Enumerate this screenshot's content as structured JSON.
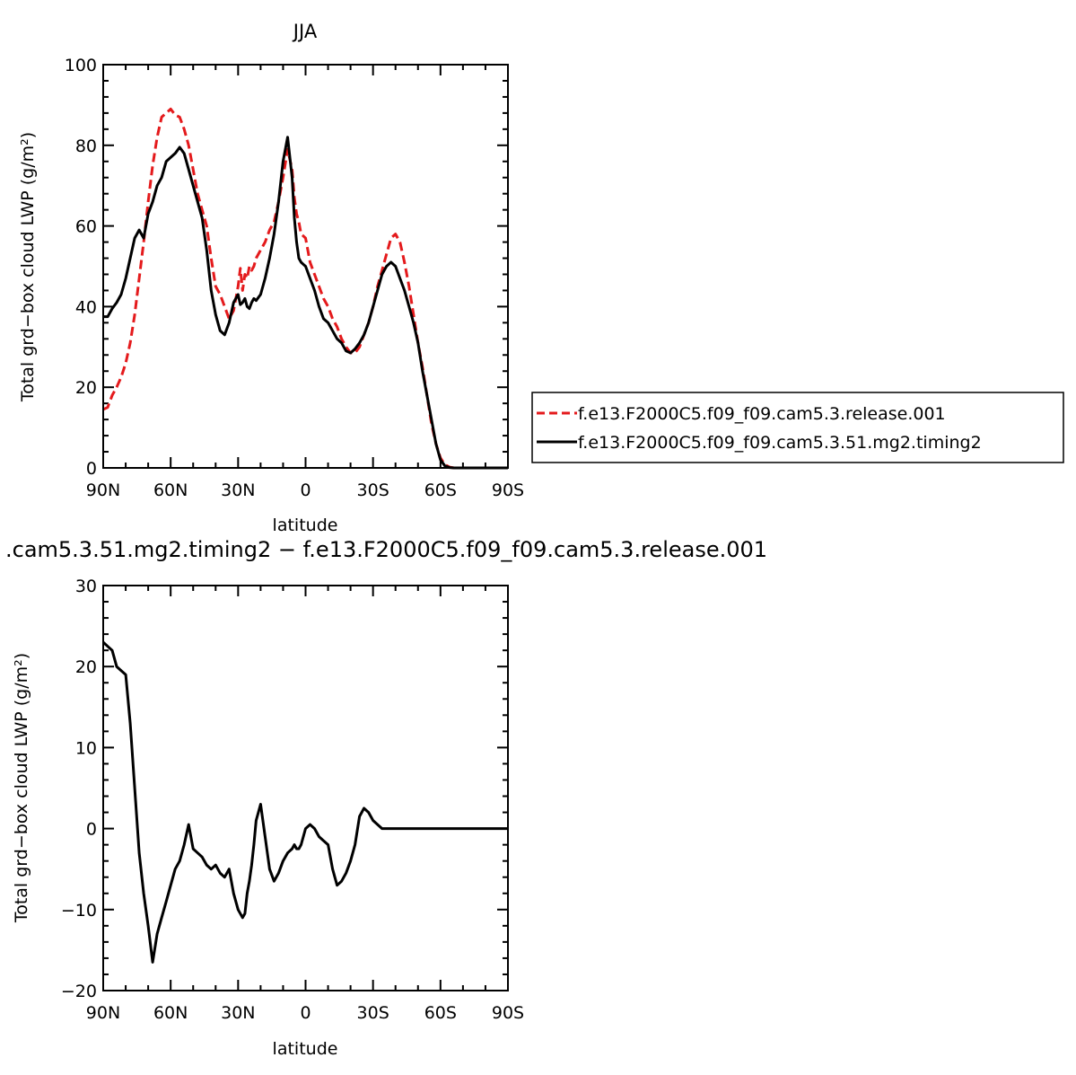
{
  "chart_data": [
    {
      "type": "line",
      "title": "JJA",
      "xlabel": "latitude",
      "ylabel": "Total grd−box cloud LWP (g/m²)",
      "xlim": [
        90,
        -90
      ],
      "ylim": [
        0,
        100
      ],
      "xticks": [
        90,
        60,
        30,
        0,
        -30,
        -60,
        -90
      ],
      "xtick_labels": [
        "90N",
        "60N",
        "30N",
        "0",
        "30S",
        "60S",
        "90S"
      ],
      "yticks": [
        0,
        20,
        40,
        60,
        80,
        100
      ],
      "ytick_labels": [
        "0",
        "20",
        "40",
        "60",
        "80",
        "100"
      ],
      "legend_position": "right",
      "series": [
        {
          "name": "f.e13.F2000C5.f09_f09.cam5.3.release.001",
          "color": "#e41a1c",
          "dash": "dashed",
          "x": [
            90,
            88,
            86,
            84,
            82,
            80,
            78,
            76,
            74,
            72,
            70,
            68,
            66,
            64,
            62,
            60,
            58,
            56,
            54,
            52,
            50,
            48,
            46,
            44,
            42,
            40,
            38,
            36,
            34,
            32,
            30,
            29,
            28,
            27,
            26,
            25,
            24,
            23,
            22,
            20,
            18,
            16,
            14,
            12,
            10,
            8,
            6,
            5,
            4,
            3,
            2,
            1,
            0,
            -2,
            -4,
            -6,
            -8,
            -10,
            -12,
            -14,
            -16,
            -18,
            -20,
            -22,
            -24,
            -26,
            -28,
            -30,
            -32,
            -34,
            -36,
            -38,
            -40,
            -42,
            -44,
            -46,
            -48,
            -50,
            -52,
            -54,
            -56,
            -58,
            -60,
            -62,
            -64,
            -66,
            -68,
            -70,
            -72,
            -74,
            -76,
            -78,
            -80,
            -82,
            -84,
            -86,
            -88,
            -90
          ],
          "y": [
            14.5,
            15,
            18,
            20,
            22.5,
            26,
            31,
            38,
            47,
            56,
            66,
            75,
            82,
            87,
            88,
            89,
            87.5,
            87,
            84,
            80,
            74,
            68,
            64,
            60,
            52,
            45,
            43,
            40,
            37,
            39,
            45,
            49.5,
            44,
            48,
            47,
            50,
            49,
            50,
            52,
            54,
            56,
            59,
            61,
            66,
            72,
            79,
            74,
            67,
            63,
            61,
            58,
            57.5,
            57,
            51,
            48,
            45,
            42,
            40,
            37,
            35,
            32,
            30,
            28.5,
            28.5,
            30,
            33,
            36,
            40,
            45,
            49,
            53,
            57,
            58,
            56,
            51,
            45,
            38,
            31,
            25,
            18,
            11,
            6,
            2.5,
            0.8,
            0.2,
            0,
            0,
            0,
            0,
            0,
            0,
            0,
            0,
            0,
            0,
            0,
            0,
            0
          ]
        },
        {
          "name": "f.e13.F2000C5.f09_f09.cam5.3.51.mg2.timing2",
          "color": "#000000",
          "dash": "solid",
          "x": [
            90,
            88,
            86,
            84,
            82,
            80,
            78,
            76,
            74,
            72,
            70,
            68,
            66,
            64,
            62,
            60,
            58,
            56,
            54,
            52,
            50,
            48,
            46,
            44,
            42,
            40,
            38,
            36,
            34,
            32,
            30,
            29,
            28,
            27,
            26,
            25,
            24,
            23,
            22,
            20,
            18,
            16,
            14,
            12,
            10,
            8,
            6,
            5,
            4,
            3,
            2,
            1,
            0,
            -2,
            -4,
            -6,
            -8,
            -10,
            -12,
            -14,
            -16,
            -18,
            -20,
            -22,
            -24,
            -26,
            -28,
            -30,
            -32,
            -34,
            -36,
            -38,
            -40,
            -42,
            -44,
            -46,
            -48,
            -50,
            -52,
            -54,
            -56,
            -58,
            -60,
            -62,
            -64,
            -66,
            -68,
            -70,
            -72,
            -74,
            -76,
            -78,
            -80,
            -82,
            -84,
            -86,
            -88,
            -90
          ],
          "y": [
            37.5,
            37.5,
            39.5,
            41,
            43,
            47,
            52,
            57,
            59,
            57,
            63,
            66,
            70,
            72,
            76,
            77,
            78,
            79.5,
            78,
            74,
            70,
            66,
            62,
            54,
            44,
            38,
            34,
            33,
            36,
            41,
            43,
            40.5,
            41,
            42,
            40,
            39.5,
            41,
            42,
            41.5,
            43,
            47,
            52,
            58,
            66,
            76,
            82,
            72,
            62,
            56,
            52,
            51,
            50.5,
            50,
            47,
            44,
            40,
            37,
            36,
            34,
            32,
            31,
            29,
            28.5,
            29.5,
            31,
            33,
            36,
            40,
            44,
            48,
            50,
            51,
            50,
            47,
            44,
            40,
            36,
            31,
            24,
            18,
            12,
            6,
            2,
            0.5,
            0.1,
            0,
            0,
            0,
            0,
            0,
            0,
            0,
            0,
            0,
            0,
            0,
            0,
            0
          ]
        }
      ]
    },
    {
      "type": "line",
      "title": ".cam5.3.51.mg2.timing2 − f.e13.F2000C5.f09_f09.cam5.3.release.001",
      "xlabel": "latitude",
      "ylabel": "Total grd−box cloud LWP (g/m²)",
      "xlim": [
        90,
        -90
      ],
      "ylim": [
        -20,
        30
      ],
      "xticks": [
        90,
        60,
        30,
        0,
        -30,
        -60,
        -90
      ],
      "xtick_labels": [
        "90N",
        "60N",
        "30N",
        "0",
        "30S",
        "60S",
        "90S"
      ],
      "yticks": [
        -20,
        -10,
        0,
        10,
        20,
        30
      ],
      "ytick_labels": [
        "−20",
        "−10",
        "0",
        "10",
        "20",
        "30"
      ],
      "series": [
        {
          "color": "#000000",
          "dash": "solid",
          "x": [
            90,
            88,
            86,
            84,
            82,
            80,
            78,
            76,
            74,
            72,
            70,
            68,
            66,
            64,
            62,
            60,
            58,
            56,
            54,
            52,
            50,
            48,
            46,
            44,
            42,
            40,
            38,
            36,
            34,
            32,
            30,
            29,
            28,
            27,
            26,
            25,
            24,
            23,
            22,
            20,
            18,
            16,
            14,
            12,
            10,
            8,
            6,
            5,
            4,
            3,
            2,
            1,
            0,
            -2,
            -4,
            -6,
            -8,
            -10,
            -12,
            -14,
            -16,
            -18,
            -20,
            -22,
            -24,
            -26,
            -28,
            -30,
            -32,
            -34,
            -36,
            -38,
            -40,
            -42,
            -44,
            -46,
            -48,
            -50,
            -52,
            -54,
            -56,
            -58,
            -60,
            -62,
            -64,
            -66,
            -68,
            -70,
            -72,
            -74,
            -76,
            -78,
            -80,
            -82,
            -84,
            -86,
            -88,
            -90
          ],
          "y": [
            23,
            22.5,
            22,
            20,
            19.5,
            19,
            13,
            5,
            -3,
            -8,
            -12,
            -16.5,
            -13,
            -11,
            -9,
            -7,
            -5,
            -4,
            -2,
            0.5,
            -2.5,
            -3,
            -3.5,
            -4.5,
            -5,
            -4.5,
            -5.5,
            -6,
            -5,
            -8,
            -10,
            -10.5,
            -11,
            -10.5,
            -8,
            -6.5,
            -4.5,
            -2,
            1,
            3,
            -1,
            -5,
            -6.5,
            -5.5,
            -4,
            -3,
            -2.5,
            -2,
            -2.5,
            -2.5,
            -2,
            -1,
            0,
            0.5,
            0,
            -1,
            -1.5,
            -2,
            -5,
            -7,
            -6.5,
            -5.5,
            -4,
            -2,
            1.5,
            2.5,
            2,
            1,
            0.5,
            0,
            0,
            0,
            0,
            0,
            0,
            0,
            0,
            0,
            0,
            0,
            0,
            0,
            0,
            0,
            0,
            0,
            0,
            0,
            0,
            0,
            0,
            0,
            0,
            0,
            0,
            0,
            0,
            0
          ]
        }
      ]
    }
  ]
}
